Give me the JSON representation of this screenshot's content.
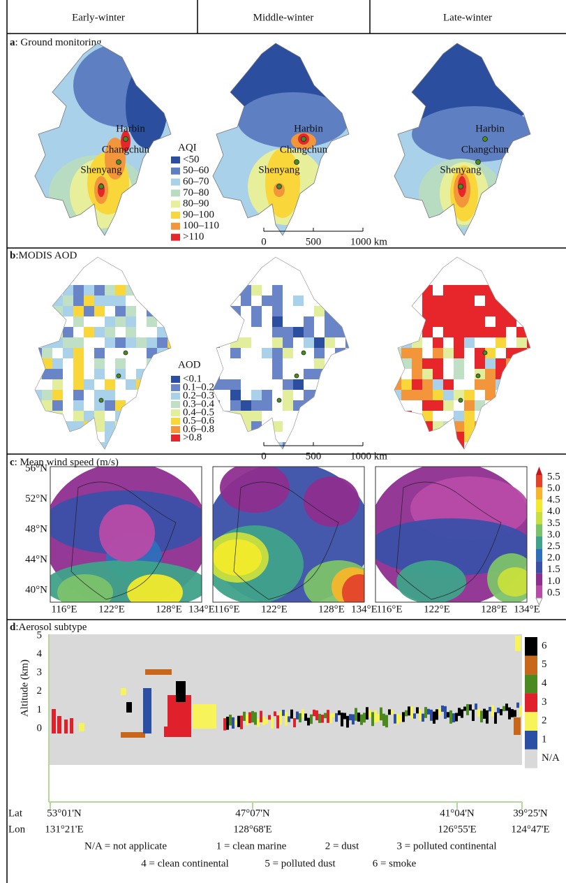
{
  "columns": [
    "Early-winter",
    "Middle-winter",
    "Late-winter"
  ],
  "panel_a": {
    "label": "a",
    "title": ": Ground monitoring",
    "cities": [
      "Harbin",
      "Changchun",
      "Shenyang"
    ],
    "legend": {
      "title": "AQI",
      "items": [
        {
          "label": "<50",
          "color": "#2b4f9e"
        },
        {
          "label": "50–60",
          "color": "#5f7fc3"
        },
        {
          "label": "60–70",
          "color": "#a9d1ea"
        },
        {
          "label": "70–80",
          "color": "#b7dcc2"
        },
        {
          "label": "80–90",
          "color": "#e8ef9a"
        },
        {
          "label": "90–100",
          "color": "#f9d73a"
        },
        {
          "label": "100–110",
          "color": "#f3953a"
        },
        {
          "label": ">110",
          "color": "#e6262a"
        }
      ]
    },
    "scale_bar": [
      "0",
      "500",
      "1000 km"
    ]
  },
  "panel_b": {
    "label": "b",
    "title": ":MODIS AOD",
    "legend": {
      "title": "AOD",
      "items": [
        {
          "label": "<0.1",
          "color": "#2b4f9e"
        },
        {
          "label": "0.1–0.2",
          "color": "#6984c7"
        },
        {
          "label": "0.2–0.3",
          "color": "#a9d1ea"
        },
        {
          "label": "0.3–0.4",
          "color": "#bfe0c4"
        },
        {
          "label": "0.4–0.5",
          "color": "#e3ee9c"
        },
        {
          "label": "0.5–0.6",
          "color": "#f9d73a"
        },
        {
          "label": "0.6–0.8",
          "color": "#f3953a"
        },
        {
          "label": ">0.8",
          "color": "#e6262a"
        }
      ]
    },
    "scale_bar": [
      "0",
      "500",
      "1000 km"
    ]
  },
  "panel_c": {
    "label": "c",
    "title": ": Mean wind speed (m/s)",
    "lat_labels": [
      "56°N",
      "52°N",
      "48°N",
      "44°N",
      "40°N"
    ],
    "lon_labels": [
      "116°E",
      "122°E",
      "128°E",
      "134°E"
    ],
    "colorbar": {
      "labels": [
        "5.5",
        "5.0",
        "4.5",
        "4.0",
        "3.5",
        "3.0",
        "2.5",
        "2.0",
        "1.5",
        "1.0",
        "0.5"
      ],
      "colors": [
        "#e2432a",
        "#f6b52a",
        "#f2ea2c",
        "#c9df3d",
        "#7cc26a",
        "#3fa28a",
        "#2d6fba",
        "#3a4fa8",
        "#8e2e8f",
        "#b84ba8"
      ]
    }
  },
  "panel_d": {
    "label": "d",
    "title": ":Aerosol subtype",
    "y_axis_label": "Altitude (km)",
    "y_ticks": [
      "5",
      "4",
      "3",
      "2",
      "1",
      "0"
    ],
    "legend": [
      {
        "label": "6",
        "color": "#000000"
      },
      {
        "label": "5",
        "color": "#c8661a"
      },
      {
        "label": "4",
        "color": "#4a8a1e"
      },
      {
        "label": "3",
        "color": "#e0202a"
      },
      {
        "label": "2",
        "color": "#f7f35a"
      },
      {
        "label": "1",
        "color": "#2a4fa5"
      },
      {
        "label": "N/A",
        "color": "#d9d9d9"
      }
    ],
    "lat_row": {
      "label": "Lat",
      "values": [
        "53°01'N",
        "47°07'N",
        "41°04'N",
        "39°25'N"
      ]
    },
    "lon_row": {
      "label": "Lon",
      "values": [
        "131°21'E",
        "128°68'E",
        "126°55'E",
        "124°47'E"
      ]
    },
    "notes": [
      "N/A = not applicate",
      "1 = clean marine",
      "2 = dust",
      "3 = polluted continental",
      "4 = clean continental",
      "5 = polluted dust",
      "6 = smoke"
    ]
  }
}
